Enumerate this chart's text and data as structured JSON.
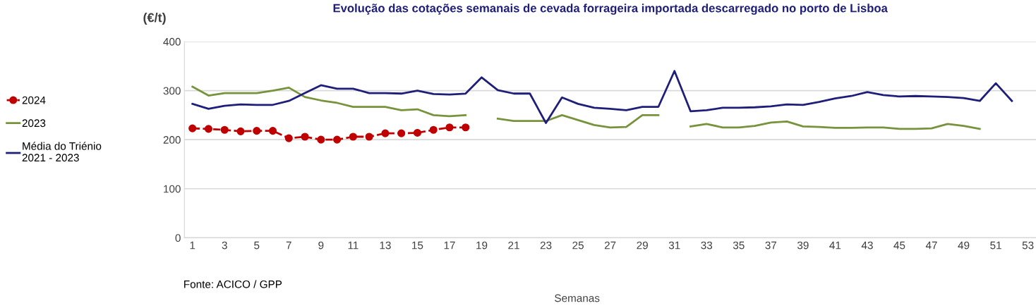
{
  "chart_data": {
    "type": "line",
    "title": "Evolução das cotações semanais de cevada forrageira importada descarregado no porto de Lisboa",
    "ylabel": "(€/t)",
    "xlabel": "Semanas",
    "annotations": [
      "Fonte: ACICO / GPP"
    ],
    "x": [
      1,
      2,
      3,
      4,
      5,
      6,
      7,
      8,
      9,
      10,
      11,
      12,
      13,
      14,
      15,
      16,
      17,
      18,
      19,
      20,
      21,
      22,
      23,
      24,
      25,
      26,
      27,
      28,
      29,
      30,
      31,
      32,
      33,
      34,
      35,
      36,
      37,
      38,
      39,
      40,
      41,
      42,
      43,
      44,
      45,
      46,
      47,
      48,
      49,
      50,
      51,
      52
    ],
    "xlim": [
      0.5,
      53.5
    ],
    "xticks": [
      1,
      3,
      5,
      7,
      9,
      11,
      13,
      15,
      17,
      19,
      21,
      23,
      25,
      27,
      29,
      31,
      33,
      35,
      37,
      39,
      41,
      43,
      45,
      47,
      49,
      51,
      53
    ],
    "ylim": [
      0,
      400
    ],
    "yticks": [
      0,
      100,
      200,
      300,
      400
    ],
    "grid": "y",
    "legend": "left",
    "series": [
      {
        "name": "2024",
        "color": "#c00000",
        "marker": "circle",
        "line_style": "dashed",
        "values": [
          223,
          222,
          220,
          217,
          218,
          218,
          203,
          206,
          200,
          200,
          206,
          206,
          213,
          213,
          214,
          220,
          225,
          225,
          null,
          null,
          null,
          null,
          null,
          null,
          null,
          null,
          null,
          null,
          null,
          null,
          null,
          null,
          null,
          null,
          null,
          null,
          null,
          null,
          null,
          null,
          null,
          null,
          null,
          null,
          null,
          null,
          null,
          null,
          null,
          null,
          null,
          null
        ]
      },
      {
        "name": "2023",
        "color": "#77933c",
        "marker": "none",
        "line_style": "solid",
        "values": [
          308,
          290,
          295,
          295,
          295,
          300,
          306,
          287,
          280,
          275,
          267,
          267,
          267,
          260,
          262,
          250,
          248,
          250,
          null,
          243,
          238,
          238,
          238,
          250,
          240,
          230,
          225,
          226,
          250,
          250,
          null,
          227,
          232,
          225,
          225,
          228,
          235,
          237,
          227,
          226,
          224,
          224,
          225,
          225,
          222,
          222,
          223,
          232,
          228,
          222,
          null,
          null
        ]
      },
      {
        "name": "Média do Triénio\n2021 - 2023",
        "color": "#1f1f7a",
        "marker": "none",
        "line_style": "solid",
        "values": [
          273,
          263,
          269,
          272,
          271,
          271,
          279,
          295,
          311,
          304,
          304,
          295,
          295,
          294,
          300,
          293,
          292,
          294,
          327,
          301,
          294,
          294,
          234,
          286,
          273,
          265,
          263,
          260,
          267,
          267,
          340,
          258,
          260,
          265,
          265,
          266,
          268,
          272,
          271,
          277,
          284,
          289,
          297,
          291,
          288,
          289,
          288,
          287,
          285,
          279,
          315,
          279
        ]
      }
    ]
  }
}
